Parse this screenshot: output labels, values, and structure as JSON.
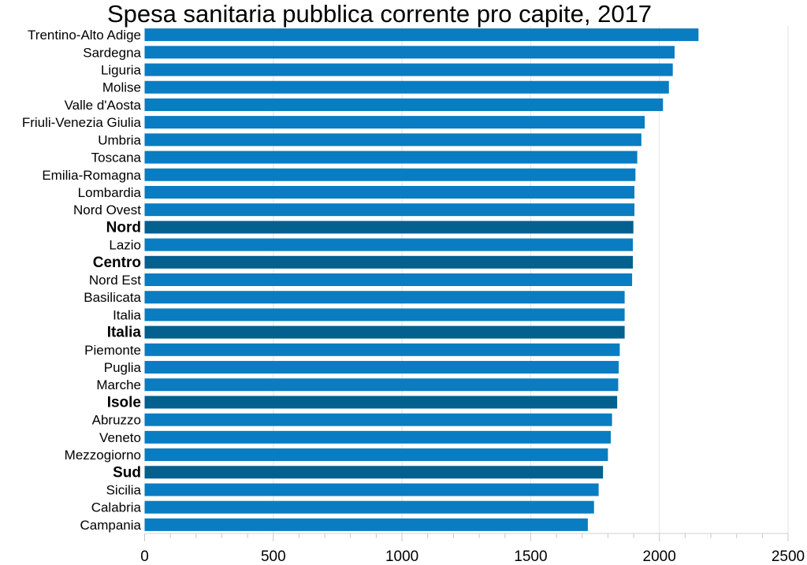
{
  "chart_data": {
    "type": "bar",
    "orientation": "horizontal",
    "title": "Spesa sanitaria pubblica corrente pro capite, 2017",
    "xlabel": "",
    "ylabel": "",
    "xlim": [
      0,
      2500
    ],
    "xticks": [
      "0",
      "500",
      "1000",
      "1500",
      "2000",
      "2500"
    ],
    "grid": true,
    "colors": {
      "region": "#0a7cc1",
      "aggregate": "#03608f"
    },
    "categories": [
      "Trentino-Alto Adige",
      "Sardegna",
      "Liguria",
      "Molise",
      "Valle d'Aosta",
      "Friuli-Venezia Giulia",
      "Umbria",
      "Toscana",
      "Emilia-Romagna",
      "Lombardia",
      "Nord Ovest",
      "Nord",
      "Lazio",
      "Centro",
      "Nord Est",
      "Basilicata",
      "Italia",
      "Italia",
      "Piemonte",
      "Puglia",
      "Marche",
      "Isole",
      "Abruzzo",
      "Veneto",
      "Mezzogiorno",
      "Sud",
      "Sicilia",
      "Calabria",
      "Campania"
    ],
    "values": [
      2152,
      2059,
      2052,
      2037,
      2014,
      1943,
      1930,
      1914,
      1907,
      1903,
      1903,
      1899,
      1897,
      1897,
      1894,
      1865,
      1865,
      1865,
      1846,
      1842,
      1840,
      1836,
      1816,
      1811,
      1800,
      1781,
      1764,
      1746,
      1722
    ],
    "highlight": [
      false,
      false,
      false,
      false,
      false,
      false,
      false,
      false,
      false,
      false,
      false,
      true,
      false,
      true,
      false,
      false,
      false,
      true,
      false,
      false,
      false,
      true,
      false,
      false,
      false,
      true,
      false,
      false,
      false
    ]
  }
}
